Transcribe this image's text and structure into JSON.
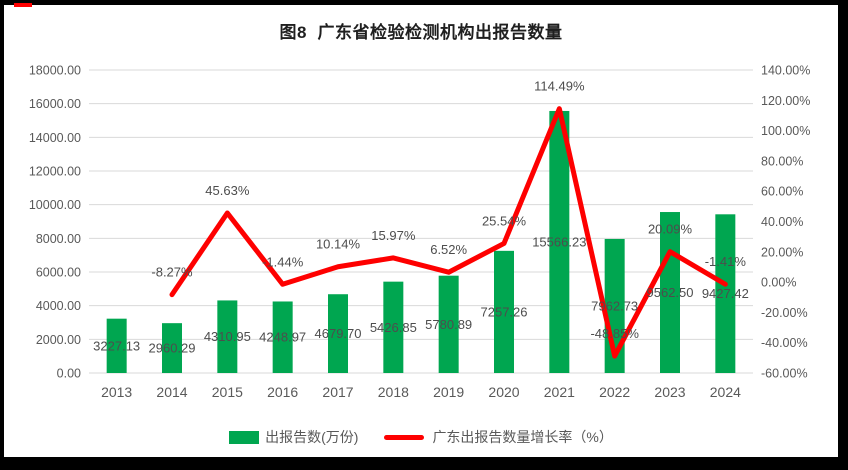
{
  "title": "图8  广东省检验检测机构出报告数量",
  "legend": [
    {
      "label": "出报告数(万份)",
      "color": "#00A650",
      "marker": "bar"
    },
    {
      "label": "广东出报告数量增长率（%）",
      "color": "#FE0000",
      "marker": "line"
    }
  ],
  "colors": {
    "bar_green": "#00A650",
    "line_red": "#FE0000",
    "gridline": "#D9D9D9",
    "tick_text": "#595959",
    "data_label_text": "#4d4d4d",
    "frame_border": "#000000",
    "corner_mark": "#FE0000",
    "background": "#FFFFFF"
  },
  "chart_data": {
    "type": "bar",
    "subtype": "combo-bar-line",
    "title": "图8  广东省检验检测机构出报告数量",
    "categories": [
      "2013",
      "2014",
      "2015",
      "2016",
      "2017",
      "2018",
      "2019",
      "2020",
      "2021",
      "2022",
      "2023",
      "2024"
    ],
    "series": [
      {
        "name": "出报告数(万份)",
        "type": "bar",
        "axis": "left",
        "color": "#00A650",
        "values": [
          3227.13,
          2960.29,
          4310.95,
          4248.97,
          4679.7,
          5426.85,
          5780.89,
          7257.26,
          15566.23,
          7962.73,
          9562.5,
          9427.42
        ],
        "labels": [
          "3227.13",
          "2960.29",
          "4310.95",
          "4248.97",
          "4679.70",
          "5426.85",
          "5780.89",
          "7257.26",
          "15566.23",
          "7962.73",
          "9562.50",
          "9427.42"
        ]
      },
      {
        "name": "广东出报告数量增长率（%）",
        "type": "line",
        "axis": "right",
        "color": "#FE0000",
        "values": [
          null,
          -8.27,
          45.63,
          -1.44,
          10.14,
          15.97,
          6.52,
          25.54,
          114.49,
          -48.85,
          20.09,
          -1.41
        ],
        "labels": [
          "",
          "-8.27%",
          "45.63%",
          "-1.44%",
          "10.14%",
          "15.97%",
          "6.52%",
          "25.54%",
          "114.49%",
          "-48.85%",
          "20.09%",
          "-1.41%"
        ]
      }
    ],
    "left_axis": {
      "min": 0,
      "max": 18000,
      "step": 2000,
      "tick_labels": [
        "0.00",
        "2000.00",
        "4000.00",
        "6000.00",
        "8000.00",
        "10000.00",
        "12000.00",
        "14000.00",
        "16000.00",
        "18000.00"
      ]
    },
    "right_axis": {
      "min": -60,
      "max": 140,
      "step": 20,
      "tick_labels": [
        "-60.00%",
        "-40.00%",
        "-20.00%",
        "0.00%",
        "20.00%",
        "40.00%",
        "60.00%",
        "80.00%",
        "100.00%",
        "120.00%",
        "140.00%"
      ]
    },
    "grid": true,
    "legend_position": "bottom",
    "bar_label_position": "inside-center",
    "line_label_position": "above"
  }
}
